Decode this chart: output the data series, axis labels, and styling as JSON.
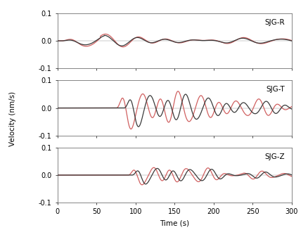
{
  "title_labels": [
    "SJG-R",
    "SJG-T",
    "SJG-Z"
  ],
  "xlabel": "Time (s)",
  "ylabel": "Velocity (nm/s)",
  "xlim": [
    0,
    300
  ],
  "ylim": [
    -0.1,
    0.1
  ],
  "yticks": [
    -0.1,
    0,
    0.1
  ],
  "xticks": [
    0,
    50,
    100,
    150,
    200,
    250,
    300
  ],
  "black_color": "#3a3a3a",
  "red_color": "#d06060",
  "linewidth_black": 0.9,
  "linewidth_red": 0.9,
  "figsize": [
    4.39,
    3.37
  ],
  "dpi": 100
}
